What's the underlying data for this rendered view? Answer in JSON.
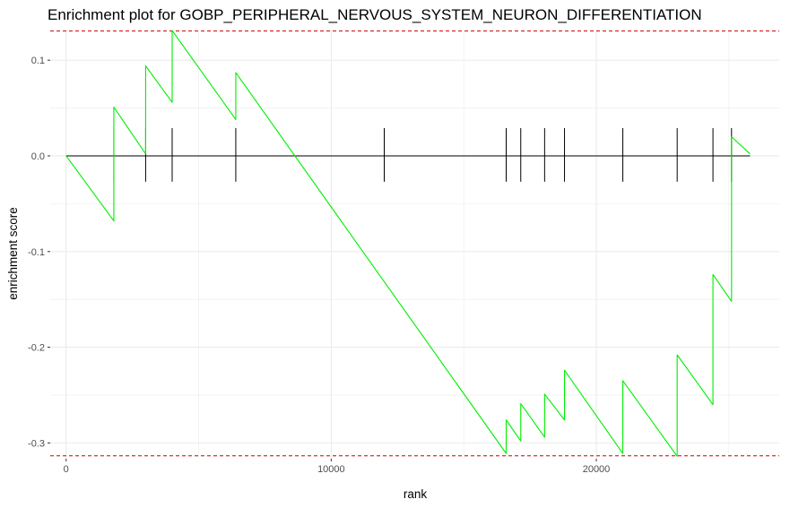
{
  "chart_data": {
    "type": "line",
    "title": "Enrichment plot for GOBP_PERIPHERAL_NERVOUS_SYSTEM_NEURON_DIFFERENTIATION",
    "xlabel": "rank",
    "ylabel": "enrichment score",
    "xlim": [
      -600,
      26900
    ],
    "ylim": [
      -0.3165,
      0.132
    ],
    "x_ticks": [
      0,
      10000,
      20000
    ],
    "x_tick_labels": [
      "0",
      "10000",
      "20000"
    ],
    "y_ticks": [
      0.1,
      0.0,
      -0.1,
      -0.2,
      -0.3
    ],
    "y_tick_labels": [
      "0.1",
      "0.0",
      "-0.1",
      "-0.2",
      "-0.3"
    ],
    "x_minor_ticks": [
      5000,
      15000,
      25000
    ],
    "y_minor_ticks": [
      0.05,
      -0.05,
      -0.15,
      -0.25
    ],
    "grid": true,
    "legend": "none",
    "colors": {
      "curve": "#00ee00",
      "threshold": "#cc0000",
      "rug": "#000000",
      "zero": "#000000",
      "grid": "#ebebeb"
    },
    "thresholds": [
      0.1305,
      -0.3135
    ],
    "gene_hits": [
      1800,
      3000,
      4000,
      6400,
      12000,
      16600,
      17150,
      18050,
      18800,
      21000,
      23050,
      24400,
      25100
    ],
    "rug_range": [
      -0.027,
      0.029
    ],
    "series": [
      {
        "x": [
          0,
          1800,
          1800,
          3000,
          3000,
          4000,
          4000,
          6400,
          6400,
          16600,
          16600,
          17150,
          17150,
          18050,
          18050,
          18800,
          18800,
          21000,
          21000,
          23050,
          23050,
          24400,
          24400,
          25100,
          25100,
          25800
        ],
        "values": [
          0.0,
          -0.068,
          0.051,
          0.002,
          0.094,
          0.056,
          0.131,
          0.038,
          0.087,
          -0.311,
          -0.276,
          -0.298,
          -0.259,
          -0.294,
          -0.249,
          -0.276,
          -0.224,
          -0.311,
          -0.235,
          -0.314,
          -0.208,
          -0.26,
          -0.124,
          -0.152,
          0.02,
          0.002
        ]
      }
    ]
  }
}
